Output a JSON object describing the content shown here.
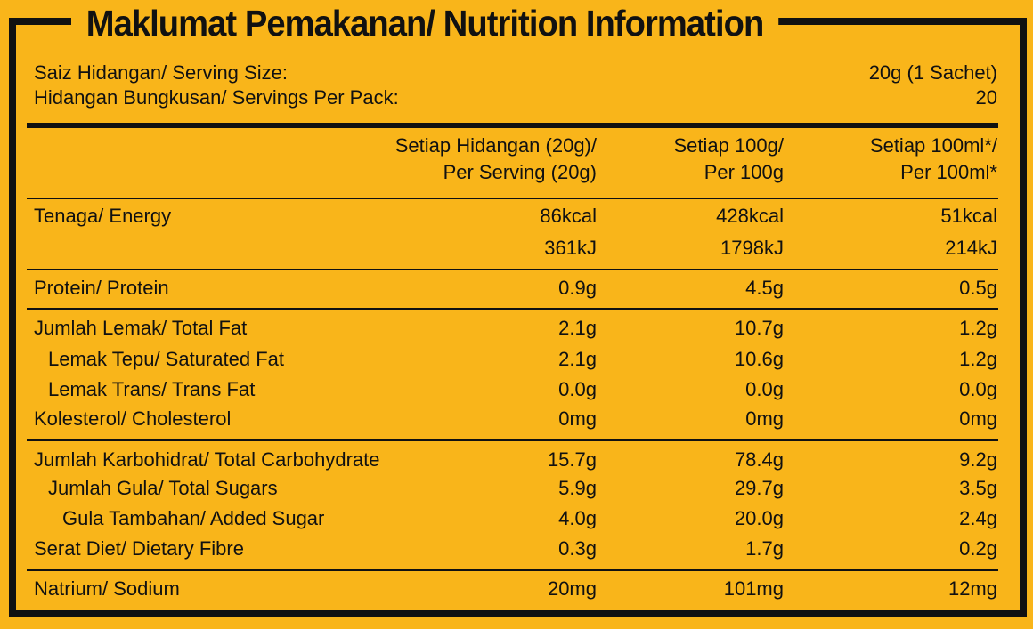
{
  "title": "Maklumat Pemakanan/ Nutrition Information",
  "serving": {
    "size_label": "Saiz Hidangan/ Serving Size:",
    "size_value": "20g (1 Sachet)",
    "per_pack_label": "Hidangan Bungkusan/ Servings Per Pack:",
    "per_pack_value": "20"
  },
  "columns": [
    {
      "line1": "Setiap Hidangan (20g)/",
      "line2": "Per Serving (20g)"
    },
    {
      "line1": "Setiap 100g/",
      "line2": "Per 100g"
    },
    {
      "line1": "Setiap 100ml*/",
      "line2": "Per 100ml*"
    }
  ],
  "energy": {
    "label": "Tenaga/ Energy",
    "kcal": [
      "86kcal",
      "428kcal",
      "51kcal"
    ],
    "kj": [
      "361kJ",
      "1798kJ",
      "214kJ"
    ]
  },
  "rows": [
    {
      "label": "Protein/ Protein",
      "values": [
        "0.9g",
        "4.5g",
        "0.5g"
      ]
    },
    {
      "label": "Jumlah Lemak/ Total Fat",
      "values": [
        "2.1g",
        "10.7g",
        "1.2g"
      ]
    },
    {
      "label": "Lemak Tepu/ Saturated Fat",
      "values": [
        "2.1g",
        "10.6g",
        "1.2g"
      ]
    },
    {
      "label": "Lemak Trans/ Trans Fat",
      "values": [
        "0.0g",
        "0.0g",
        "0.0g"
      ]
    },
    {
      "label": "Kolesterol/ Cholesterol",
      "values": [
        "0mg",
        "0mg",
        "0mg"
      ]
    },
    {
      "label": "Jumlah Karbohidrat/ Total Carbohydrate",
      "values": [
        "15.7g",
        "78.4g",
        "9.2g"
      ]
    },
    {
      "label": "Jumlah Gula/ Total Sugars",
      "values": [
        "5.9g",
        "29.7g",
        "3.5g"
      ]
    },
    {
      "label": "Gula Tambahan/ Added Sugar",
      "values": [
        "4.0g",
        "20.0g",
        "2.4g"
      ]
    },
    {
      "label": "Serat Diet/ Dietary Fibre",
      "values": [
        "0.3g",
        "1.7g",
        "0.2g"
      ]
    },
    {
      "label": "Natrium/ Sodium",
      "values": [
        "20mg",
        "101mg",
        "12mg"
      ]
    }
  ],
  "colors": {
    "background": "#f9b51a",
    "ink": "#111111"
  }
}
